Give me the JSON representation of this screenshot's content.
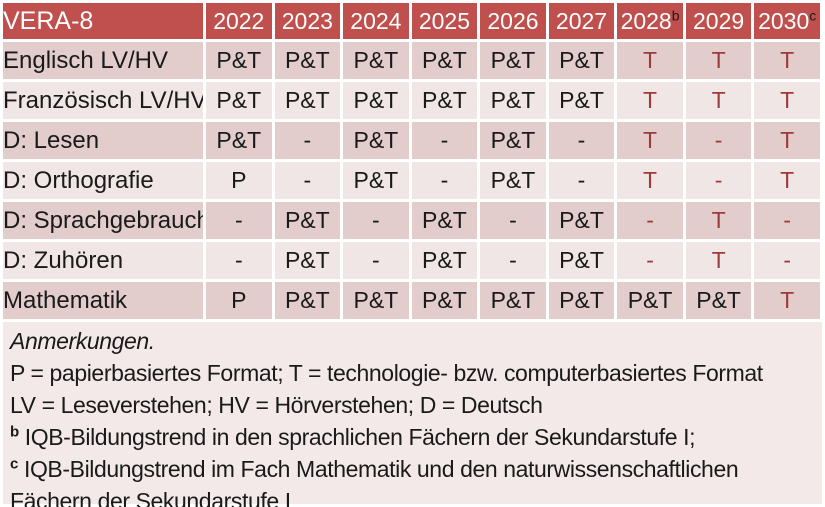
{
  "colors": {
    "header_bg": "#C0504D",
    "header_text": "#FFFFFF",
    "row_dark": "#E2CCCC",
    "row_light": "#F1E6E6",
    "notes_bg": "#F2E9E8",
    "text": "#1A1A1A",
    "tech_red": "#9E3B3A"
  },
  "table": {
    "title": "VERA-8",
    "year_headers": [
      {
        "label": "2022",
        "sup": ""
      },
      {
        "label": "2023",
        "sup": ""
      },
      {
        "label": "2024",
        "sup": ""
      },
      {
        "label": "2025",
        "sup": ""
      },
      {
        "label": "2026",
        "sup": ""
      },
      {
        "label": "2027",
        "sup": ""
      },
      {
        "label": "2028",
        "sup": "b"
      },
      {
        "label": "2029",
        "sup": ""
      },
      {
        "label": "2030",
        "sup": "c"
      }
    ],
    "rows": [
      {
        "label": "Englisch LV/HV",
        "cells": [
          {
            "v": "P&T",
            "red": false
          },
          {
            "v": "P&T",
            "red": false
          },
          {
            "v": "P&T",
            "red": false
          },
          {
            "v": "P&T",
            "red": false
          },
          {
            "v": "P&T",
            "red": false
          },
          {
            "v": "P&T",
            "red": false
          },
          {
            "v": "T",
            "red": true
          },
          {
            "v": "T",
            "red": true
          },
          {
            "v": "T",
            "red": true
          }
        ]
      },
      {
        "label": "Französisch LV/HV",
        "cells": [
          {
            "v": "P&T",
            "red": false
          },
          {
            "v": "P&T",
            "red": false
          },
          {
            "v": "P&T",
            "red": false
          },
          {
            "v": "P&T",
            "red": false
          },
          {
            "v": "P&T",
            "red": false
          },
          {
            "v": "P&T",
            "red": false
          },
          {
            "v": "T",
            "red": true
          },
          {
            "v": "T",
            "red": true
          },
          {
            "v": "T",
            "red": true
          }
        ]
      },
      {
        "label": "D: Lesen",
        "cells": [
          {
            "v": "P&T",
            "red": false
          },
          {
            "v": "-",
            "red": false
          },
          {
            "v": "P&T",
            "red": false
          },
          {
            "v": "-",
            "red": false
          },
          {
            "v": "P&T",
            "red": false
          },
          {
            "v": "-",
            "red": false
          },
          {
            "v": "T",
            "red": true
          },
          {
            "v": "-",
            "red": true
          },
          {
            "v": "T",
            "red": true
          }
        ]
      },
      {
        "label": "D: Orthografie",
        "cells": [
          {
            "v": "P",
            "red": false
          },
          {
            "v": "-",
            "red": false
          },
          {
            "v": "P&T",
            "red": false
          },
          {
            "v": "-",
            "red": false
          },
          {
            "v": "P&T",
            "red": false
          },
          {
            "v": "-",
            "red": false
          },
          {
            "v": "T",
            "red": true
          },
          {
            "v": "-",
            "red": true
          },
          {
            "v": "T",
            "red": true
          }
        ]
      },
      {
        "label": "D: Sprachgebrauch",
        "cells": [
          {
            "v": "-",
            "red": false
          },
          {
            "v": "P&T",
            "red": false
          },
          {
            "v": "-",
            "red": false
          },
          {
            "v": "P&T",
            "red": false
          },
          {
            "v": "-",
            "red": false
          },
          {
            "v": "P&T",
            "red": false
          },
          {
            "v": "-",
            "red": true
          },
          {
            "v": "T",
            "red": true
          },
          {
            "v": "-",
            "red": true
          }
        ]
      },
      {
        "label": "D: Zuhören",
        "cells": [
          {
            "v": "-",
            "red": false
          },
          {
            "v": "P&T",
            "red": false
          },
          {
            "v": "-",
            "red": false
          },
          {
            "v": "P&T",
            "red": false
          },
          {
            "v": "-",
            "red": false
          },
          {
            "v": "P&T",
            "red": false
          },
          {
            "v": "-",
            "red": true
          },
          {
            "v": "T",
            "red": true
          },
          {
            "v": "-",
            "red": true
          }
        ]
      },
      {
        "label": "Mathematik",
        "cells": [
          {
            "v": "P",
            "red": false
          },
          {
            "v": "P&T",
            "red": false
          },
          {
            "v": "P&T",
            "red": false
          },
          {
            "v": "P&T",
            "red": false
          },
          {
            "v": "P&T",
            "red": false
          },
          {
            "v": "P&T",
            "red": false
          },
          {
            "v": "P&T",
            "red": false
          },
          {
            "v": "P&T",
            "red": false
          },
          {
            "v": "T",
            "red": true
          }
        ]
      }
    ]
  },
  "notes": {
    "heading": "Anmerkungen.",
    "lines": [
      {
        "sup": "",
        "text": "P = papierbasiertes Format; T = technologie- bzw. computerbasiertes Format"
      },
      {
        "sup": "",
        "text": "LV = Leseverstehen; HV = Hörverstehen; D = Deutsch"
      },
      {
        "sup": "b",
        "text": "IQB-Bildungstrend in den sprachlichen Fächern der Sekundarstufe I;"
      },
      {
        "sup": "c",
        "text": "IQB-Bildungstrend im Fach Mathematik und den naturwissenschaftlichen"
      },
      {
        "sup": "",
        "text": "Fächern der Sekundarstufe I"
      }
    ]
  }
}
